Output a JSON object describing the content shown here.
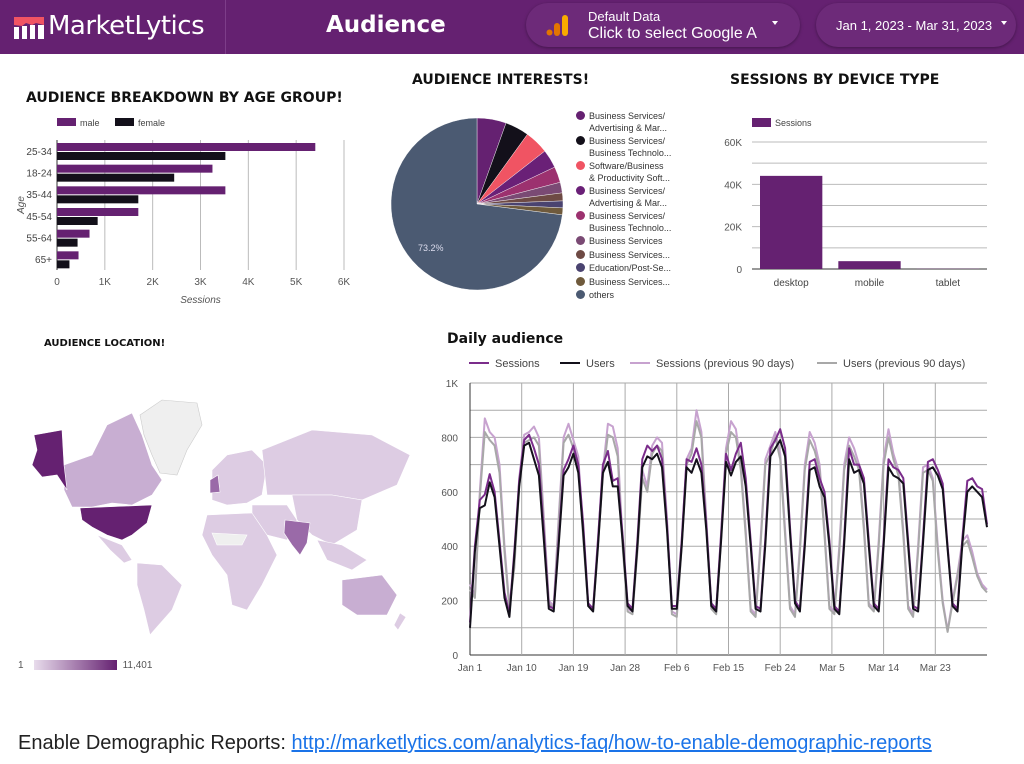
{
  "header": {
    "brand": "MarketLytics",
    "title": "Audience",
    "data_source": {
      "label": "Default Data",
      "value": "Click to select Google Analytics",
      "icon": "google-analytics-icon"
    },
    "date_range": "Jan 1, 2023 - Mar 31, 2023",
    "colors": {
      "bar": "#652171",
      "logo_accent": "#f05463",
      "ga_orange": "#e37400",
      "ga_yellow": "#f9ab00"
    }
  },
  "age_chart": {
    "title": "AUDIENCE BREAKDOWN BY AGE GROUP!",
    "chart_data": {
      "type": "bar",
      "orientation": "horizontal",
      "categories": [
        "25-34",
        "18-24",
        "35-44",
        "45-54",
        "55-64",
        "65+"
      ],
      "series": [
        {
          "name": "male",
          "color": "#652171",
          "values": [
            5400,
            3250,
            3520,
            1700,
            680,
            450
          ]
        },
        {
          "name": "female",
          "color": "#13101a",
          "values": [
            3520,
            2450,
            1700,
            850,
            430,
            260
          ]
        }
      ],
      "xlabel": "Sessions",
      "ylabel": "Age",
      "xlim": [
        0,
        6000
      ],
      "xticks": [
        "0",
        "1K",
        "2K",
        "3K",
        "4K",
        "5K",
        "6K"
      ],
      "grid": true,
      "legend": "top-left"
    }
  },
  "interests_chart": {
    "title": "AUDIENCE INTERESTS!",
    "chart_data": {
      "type": "pie",
      "slices": [
        {
          "label": "Business Services/ Advertising & Mar...",
          "value": 5.5,
          "color": "#652171"
        },
        {
          "label": "Business Services/ Business Technolo...",
          "value": 4.5,
          "color": "#13101a"
        },
        {
          "label": "Software/Business & Productivity Soft...",
          "value": 4.5,
          "color": "#f05463"
        },
        {
          "label": "Business Services/ Advertising & Mar...",
          "value": 3.5,
          "color": "#6a2077"
        },
        {
          "label": "Business Services/ Business Technolo...",
          "value": 3.0,
          "color": "#9c316f"
        },
        {
          "label": "Business Services",
          "value": 2.0,
          "color": "#7a4a74"
        },
        {
          "label": "Business Services...",
          "value": 1.5,
          "color": "#6e4a44"
        },
        {
          "label": "Education/Post-Se...",
          "value": 1.3,
          "color": "#4a4370"
        },
        {
          "label": "Business Services...",
          "value": 1.3,
          "color": "#6f5a3c"
        },
        {
          "label": "others",
          "value": 73.2,
          "color": "#4b5a72"
        }
      ],
      "data_labels": [
        "73.2%"
      ],
      "legend": "right"
    }
  },
  "device_chart": {
    "title": "SESSIONS BY DEVICE TYPE",
    "chart_data": {
      "type": "bar",
      "categories": [
        "desktop",
        "mobile",
        "tablet"
      ],
      "series": [
        {
          "name": "Sessions",
          "color": "#652171",
          "values": [
            44000,
            3700,
            100
          ]
        }
      ],
      "ylim": [
        0,
        60000
      ],
      "yticks": [
        "0",
        "20K",
        "40K",
        "60K"
      ],
      "grid": true,
      "legend": "top-left"
    }
  },
  "location_map": {
    "title": "AUDIENCE LOCATION!",
    "scale_min": "1",
    "scale_max": "11,401",
    "color_low": "#e8dcec",
    "color_high": "#652171"
  },
  "daily_chart": {
    "title": "Daily audience",
    "chart_data": {
      "type": "line",
      "x_start": "Jan 1",
      "xticks": [
        "Jan 1",
        "Jan 10",
        "Jan 19",
        "Jan 28",
        "Feb 6",
        "Feb 15",
        "Feb 24",
        "Mar 5",
        "Mar 14",
        "Mar 23"
      ],
      "yticks": [
        "0",
        "200",
        "400",
        "600",
        "800",
        "1K"
      ],
      "ylim": [
        0,
        1000
      ],
      "grid": true,
      "legend": "top",
      "series": [
        {
          "name": "Sessions",
          "color": "#7b2d8b",
          "values": [
            120,
            400,
            570,
            590,
            665,
            600,
            420,
            230,
            150,
            380,
            640,
            790,
            810,
            760,
            700,
            450,
            180,
            170,
            420,
            680,
            720,
            770,
            700,
            480,
            190,
            170,
            420,
            700,
            750,
            640,
            650,
            440,
            190,
            170,
            420,
            720,
            770,
            750,
            770,
            720,
            480,
            180,
            180,
            420,
            720,
            710,
            760,
            700,
            480,
            190,
            170,
            440,
            740,
            680,
            740,
            780,
            650,
            420,
            180,
            170,
            430,
            760,
            790,
            830,
            760,
            470,
            200,
            170,
            420,
            710,
            720,
            650,
            600,
            420,
            180,
            160,
            430,
            760,
            700,
            700,
            650,
            420,
            190,
            170,
            420,
            720,
            690,
            680,
            650,
            420,
            180,
            170,
            430,
            710,
            720,
            680,
            630,
            400,
            190,
            170,
            430,
            640,
            650,
            620,
            610,
            480
          ]
        },
        {
          "name": "Users",
          "color": "#13101a",
          "values": [
            100,
            380,
            540,
            550,
            635,
            580,
            400,
            210,
            140,
            360,
            620,
            770,
            780,
            720,
            660,
            420,
            170,
            160,
            400,
            660,
            690,
            740,
            670,
            450,
            180,
            160,
            400,
            670,
            710,
            620,
            620,
            420,
            180,
            160,
            400,
            690,
            730,
            720,
            740,
            690,
            460,
            170,
            170,
            400,
            690,
            670,
            720,
            670,
            460,
            180,
            160,
            420,
            710,
            660,
            710,
            730,
            620,
            400,
            170,
            160,
            410,
            730,
            760,
            790,
            730,
            450,
            190,
            160,
            400,
            680,
            690,
            620,
            580,
            400,
            170,
            150,
            410,
            720,
            670,
            680,
            630,
            400,
            180,
            160,
            400,
            690,
            660,
            650,
            630,
            400,
            170,
            160,
            410,
            680,
            690,
            660,
            610,
            390,
            180,
            160,
            410,
            600,
            620,
            600,
            580,
            470
          ]
        },
        {
          "name": "Sessions (previous 90 days)",
          "color": "#c7a2cf",
          "values": [
            260,
            220,
            600,
            870,
            820,
            800,
            700,
            400,
            180,
            340,
            650,
            810,
            820,
            840,
            800,
            500,
            200,
            180,
            500,
            800,
            850,
            790,
            730,
            450,
            190,
            170,
            430,
            680,
            850,
            840,
            760,
            420,
            170,
            160,
            400,
            680,
            620,
            770,
            800,
            780,
            500,
            160,
            150,
            420,
            720,
            760,
            900,
            820,
            500,
            180,
            160,
            450,
            760,
            860,
            830,
            700,
            460,
            170,
            150,
            420,
            720,
            770,
            820,
            740,
            460,
            180,
            150,
            400,
            700,
            820,
            780,
            700,
            460,
            180,
            160,
            400,
            700,
            800,
            760,
            700,
            480,
            190,
            170,
            420,
            720,
            830,
            740,
            680,
            460,
            180,
            150,
            400,
            690,
            700,
            650,
            400,
            200,
            90,
            200,
            300,
            420,
            440,
            380,
            300,
            260,
            240
          ]
        },
        {
          "name": "Users (previous 90 days)",
          "color": "#a8a8a8",
          "values": [
            240,
            210,
            580,
            820,
            790,
            770,
            670,
            380,
            170,
            320,
            620,
            780,
            790,
            800,
            770,
            480,
            190,
            170,
            480,
            780,
            810,
            760,
            700,
            430,
            180,
            160,
            410,
            660,
            810,
            800,
            730,
            400,
            160,
            150,
            380,
            650,
            600,
            740,
            770,
            750,
            480,
            150,
            140,
            400,
            700,
            740,
            860,
            800,
            480,
            170,
            150,
            430,
            740,
            820,
            800,
            680,
            440,
            160,
            140,
            400,
            700,
            740,
            800,
            720,
            440,
            170,
            140,
            380,
            680,
            790,
            750,
            680,
            440,
            170,
            150,
            380,
            680,
            770,
            730,
            680,
            460,
            180,
            160,
            400,
            700,
            800,
            720,
            660,
            440,
            170,
            140,
            380,
            670,
            680,
            640,
            380,
            190,
            85,
            190,
            290,
            400,
            420,
            360,
            290,
            250,
            230
          ]
        }
      ]
    }
  },
  "footer": {
    "label": "Enable Demographic Reports: ",
    "link": "http://marketlytics.com/analytics-faq/how-to-enable-demographic-reports"
  }
}
